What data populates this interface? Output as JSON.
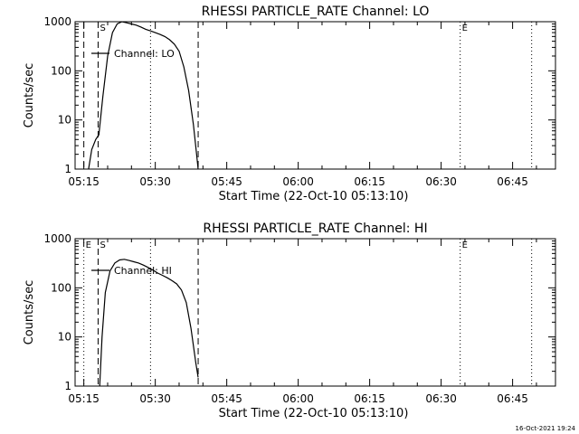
{
  "footer_timestamp": "16-Oct-2021 19:24",
  "colors": {
    "background": "#ffffff",
    "foreground": "#000000"
  },
  "chart_data": [
    {
      "type": "line",
      "title": "RHESSI PARTICLE_RATE Channel: LO",
      "xlabel": "Start Time (22-Oct-10 05:13:10)",
      "ylabel": "Counts/sec",
      "yscale": "log",
      "xlim": [
        "05:13:10",
        "06:54:00"
      ],
      "ylim": [
        1,
        1000
      ],
      "xticks": [
        "05:15",
        "05:30",
        "05:45",
        "06:00",
        "06:15",
        "06:30",
        "06:45"
      ],
      "yticks": [
        "1",
        "10",
        "100",
        "1000"
      ],
      "legend": "Channel: LO",
      "legend_position": "top-left",
      "markers": [
        {
          "time": "05:15",
          "style": "dashed",
          "label": ""
        },
        {
          "time": "05:18",
          "style": "dashed",
          "label": "S"
        },
        {
          "time": "05:29",
          "style": "dotted",
          "label": ""
        },
        {
          "time": "05:39",
          "style": "dashed",
          "label": ""
        },
        {
          "time": "06:34",
          "style": "dotted",
          "label": "E"
        },
        {
          "time": "06:49",
          "style": "dotted",
          "label": ""
        }
      ],
      "series": [
        {
          "name": "Channel: LO",
          "x": [
            "05:16:00",
            "05:16:40",
            "05:17:30",
            "05:18:10",
            "05:19:00",
            "05:20:00",
            "05:21:00",
            "05:22:00",
            "05:23:00",
            "05:24:00",
            "05:25:00",
            "05:26:00",
            "05:27:00",
            "05:28:00",
            "05:29:00",
            "05:30:00",
            "05:31:00",
            "05:32:00",
            "05:33:00",
            "05:34:00",
            "05:35:00",
            "05:36:00",
            "05:37:00",
            "05:38:00",
            "05:38:40",
            "05:39:00"
          ],
          "y": [
            1,
            2.5,
            4,
            5,
            30,
            200,
            600,
            900,
            1000,
            950,
            900,
            850,
            780,
            700,
            650,
            600,
            550,
            500,
            430,
            350,
            250,
            120,
            40,
            8,
            2,
            1
          ]
        }
      ]
    },
    {
      "type": "line",
      "title": "RHESSI PARTICLE_RATE Channel: HI",
      "xlabel": "Start Time (22-Oct-10 05:13:10)",
      "ylabel": "Counts/sec",
      "yscale": "log",
      "xlim": [
        "05:13:10",
        "06:54:00"
      ],
      "ylim": [
        1,
        1000
      ],
      "xticks": [
        "05:15",
        "05:30",
        "05:45",
        "06:00",
        "06:15",
        "06:30",
        "06:45"
      ],
      "yticks": [
        "1",
        "10",
        "100",
        "1000"
      ],
      "legend": "Channel: HI",
      "legend_position": "top-left",
      "markers": [
        {
          "time": "05:15",
          "style": "dotted",
          "label": "E"
        },
        {
          "time": "05:18",
          "style": "dashed",
          "label": "S"
        },
        {
          "time": "05:29",
          "style": "dotted",
          "label": ""
        },
        {
          "time": "05:39",
          "style": "dashed",
          "label": ""
        },
        {
          "time": "06:34",
          "style": "dotted",
          "label": "E"
        },
        {
          "time": "06:49",
          "style": "dotted",
          "label": ""
        }
      ],
      "series": [
        {
          "name": "Channel: HI",
          "x": [
            "05:18:20",
            "05:18:50",
            "05:19:30",
            "05:20:30",
            "05:21:30",
            "05:22:30",
            "05:23:30",
            "05:24:30",
            "05:25:30",
            "05:26:30",
            "05:27:30",
            "05:28:30",
            "05:29:30",
            "05:30:30",
            "05:31:30",
            "05:32:30",
            "05:33:30",
            "05:34:30",
            "05:35:30",
            "05:36:30",
            "05:37:30",
            "05:38:30",
            "05:39:00"
          ],
          "y": [
            1,
            10,
            80,
            220,
            320,
            370,
            380,
            360,
            340,
            320,
            290,
            260,
            230,
            200,
            180,
            160,
            140,
            120,
            90,
            50,
            15,
            3,
            1.5
          ]
        }
      ]
    }
  ]
}
